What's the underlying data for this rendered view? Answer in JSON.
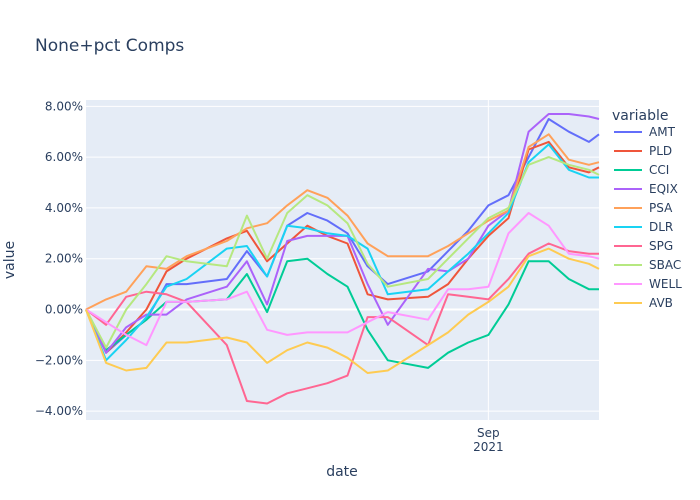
{
  "chart_data": {
    "type": "line",
    "title": "None+pct Comps",
    "xlabel": "date",
    "ylabel": "value",
    "legend_title": "variable",
    "legend_position": "right",
    "grid": true,
    "x_ticks": [
      {
        "date": "2021-09-01",
        "label1": "Sep",
        "label2": "2021"
      }
    ],
    "y_ticks": [
      -0.04,
      -0.02,
      0.0,
      0.02,
      0.04,
      0.06,
      0.08
    ],
    "y_tick_labels": [
      "−4.00%",
      "−2.00%",
      "0.00%",
      "2.00%",
      "4.00%",
      "6.00%",
      "8.00%"
    ],
    "xlim": [
      "2021-07-23",
      "2021-09-12"
    ],
    "ylim": [
      -0.0435,
      0.0825
    ],
    "x": [
      "2021-07-23",
      "2021-07-25",
      "2021-07-27",
      "2021-07-29",
      "2021-07-31",
      "2021-08-02",
      "2021-08-06",
      "2021-08-08",
      "2021-08-10",
      "2021-08-12",
      "2021-08-14",
      "2021-08-16",
      "2021-08-18",
      "2021-08-20",
      "2021-08-22",
      "2021-08-26",
      "2021-08-28",
      "2021-08-30",
      "2021-09-01",
      "2021-09-03",
      "2021-09-05",
      "2021-09-07",
      "2021-09-09",
      "2021-09-11",
      "2021-09-12"
    ],
    "series": [
      {
        "name": "AMT",
        "color": "#636efa",
        "values": [
          0.0,
          -0.017,
          -0.01,
          -0.004,
          0.01,
          0.01,
          0.012,
          0.023,
          0.013,
          0.033,
          0.038,
          0.035,
          0.03,
          0.017,
          0.01,
          0.015,
          0.023,
          0.031,
          0.041,
          0.045,
          0.06,
          0.075,
          0.07,
          0.066,
          0.069
        ]
      },
      {
        "name": "PLD",
        "color": "#ef553b",
        "values": [
          0.0,
          -0.017,
          -0.009,
          0.0,
          0.015,
          0.02,
          0.028,
          0.031,
          0.019,
          0.026,
          0.033,
          0.029,
          0.026,
          0.006,
          0.004,
          0.005,
          0.01,
          0.02,
          0.029,
          0.036,
          0.063,
          0.066,
          0.056,
          0.054,
          0.056
        ]
      },
      {
        "name": "CCI",
        "color": "#00cc96",
        "values": [
          0.0,
          -0.016,
          -0.01,
          -0.004,
          0.003,
          0.003,
          0.004,
          0.014,
          -0.001,
          0.019,
          0.02,
          0.014,
          0.009,
          -0.008,
          -0.02,
          -0.023,
          -0.017,
          -0.013,
          -0.01,
          0.002,
          0.019,
          0.019,
          0.012,
          0.008,
          0.008
        ]
      },
      {
        "name": "EQIX",
        "color": "#ab63fa",
        "values": [
          0.0,
          -0.017,
          -0.007,
          -0.002,
          -0.002,
          0.004,
          0.009,
          0.019,
          0.002,
          0.027,
          0.029,
          0.029,
          0.029,
          0.01,
          -0.006,
          0.016,
          0.015,
          0.02,
          0.033,
          0.039,
          0.07,
          0.077,
          0.077,
          0.076,
          0.075
        ]
      },
      {
        "name": "PSA",
        "color": "#ffa15a",
        "values": [
          0.0,
          0.004,
          0.007,
          0.017,
          0.016,
          0.021,
          0.027,
          0.032,
          0.034,
          0.041,
          0.047,
          0.044,
          0.037,
          0.026,
          0.021,
          0.021,
          0.025,
          0.03,
          0.035,
          0.039,
          0.064,
          0.069,
          0.059,
          0.057,
          0.058
        ]
      },
      {
        "name": "DLR",
        "color": "#19d3f3",
        "values": [
          0.0,
          -0.02,
          -0.012,
          -0.003,
          0.009,
          0.012,
          0.024,
          0.025,
          0.013,
          0.033,
          0.032,
          0.03,
          0.029,
          0.024,
          0.006,
          0.008,
          0.015,
          0.022,
          0.03,
          0.038,
          0.058,
          0.065,
          0.055,
          0.052,
          0.052
        ]
      },
      {
        "name": "SPG",
        "color": "#ff6692",
        "values": [
          0.0,
          -0.006,
          0.005,
          0.007,
          0.006,
          0.003,
          -0.014,
          -0.036,
          -0.037,
          -0.033,
          -0.031,
          -0.029,
          -0.026,
          -0.003,
          -0.003,
          -0.014,
          0.006,
          0.005,
          0.004,
          0.012,
          0.022,
          0.026,
          0.023,
          0.022,
          0.022
        ]
      },
      {
        "name": "SBAC",
        "color": "#b6e880",
        "values": [
          0.0,
          -0.015,
          0.0,
          0.01,
          0.021,
          0.019,
          0.017,
          0.037,
          0.02,
          0.038,
          0.045,
          0.041,
          0.034,
          0.018,
          0.009,
          0.012,
          0.02,
          0.028,
          0.036,
          0.04,
          0.057,
          0.06,
          0.057,
          0.055,
          0.053
        ]
      },
      {
        "name": "WELL",
        "color": "#ff97ff",
        "values": [
          0.0,
          -0.005,
          -0.01,
          -0.014,
          0.003,
          0.003,
          0.004,
          0.007,
          -0.008,
          -0.01,
          -0.009,
          -0.009,
          -0.009,
          -0.005,
          -0.001,
          -0.004,
          0.008,
          0.008,
          0.009,
          0.03,
          0.038,
          0.033,
          0.022,
          0.021,
          0.02
        ]
      },
      {
        "name": "AVB",
        "color": "#fecb52",
        "values": [
          0.0,
          -0.021,
          -0.024,
          -0.023,
          -0.013,
          -0.013,
          -0.011,
          -0.013,
          -0.021,
          -0.016,
          -0.013,
          -0.015,
          -0.019,
          -0.025,
          -0.024,
          -0.014,
          -0.009,
          -0.002,
          0.003,
          0.009,
          0.021,
          0.024,
          0.02,
          0.018,
          0.016
        ]
      }
    ]
  }
}
